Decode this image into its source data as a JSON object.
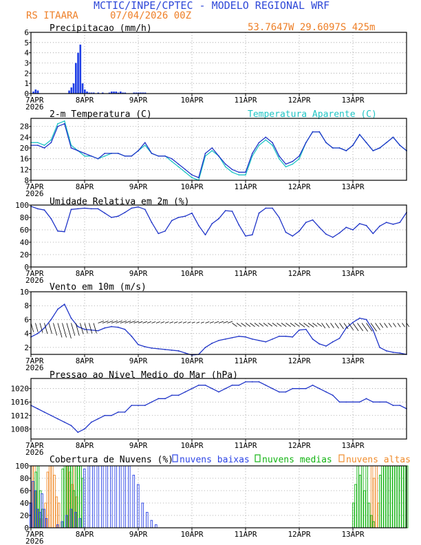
{
  "header": {
    "title": "MCTIC/INPE/CPTEC - MODELO REGIONAL WRF",
    "location": "RS ITAARA",
    "run": "07/04/2026 00Z",
    "coords": "53.7647W 29.6097S 425m"
  },
  "colors": {
    "header_blue": "#2f49d8",
    "header_orange": "#ee7f27",
    "precip": "#1e3ee6",
    "temp": "#1f34c8",
    "apparent": "#1fc4c4",
    "rh": "#1f34c8",
    "wind": "#1f34c8",
    "barb": "#000000",
    "pressure": "#1f34c8",
    "cloud_low": "#2c44e6",
    "cloud_mid": "#13b413",
    "cloud_high": "#f08c2c",
    "grid": "#9a9a9a"
  },
  "x_axis": {
    "ticks": [
      "7APR",
      "8APR",
      "9APR",
      "10APR",
      "11APR",
      "12APR",
      "13APR"
    ],
    "year": "2026"
  },
  "panels": {
    "precip": {
      "title": "Precipitacao (mm/h)",
      "ylim": [
        0,
        6
      ],
      "yticks": [
        "0",
        "1",
        "2",
        "3",
        "4",
        "5",
        "6"
      ]
    },
    "temperature": {
      "title": "2-m Temperatura (C)",
      "legend": "Temperatura Aparente (C)",
      "ylim": [
        8,
        31
      ],
      "yticks": [
        "8",
        "12",
        "16",
        "20",
        "24",
        "28"
      ]
    },
    "humidity": {
      "title": "Umidade Relativa em 2m (%)",
      "ylim": [
        0,
        100
      ],
      "yticks": [
        "0",
        "20",
        "40",
        "60",
        "80",
        "100"
      ]
    },
    "wind": {
      "title": "Vento em 10m (m/s)",
      "ylim": [
        1,
        10
      ],
      "yticks": [
        "2",
        "4",
        "6",
        "8",
        "10"
      ]
    },
    "pressure": {
      "title": "Pressao ao Nivel Medio do Mar (hPa)",
      "ylim": [
        1005,
        1023
      ],
      "yticks": [
        "1008",
        "1012",
        "1016",
        "1020"
      ]
    },
    "clouds": {
      "title": "Cobertura de Nuvens (%)",
      "legend_low": "nuvens baixas",
      "legend_mid": "nuvens medias",
      "legend_high": "nuvens altas",
      "ylim": [
        0,
        100
      ],
      "yticks": [
        "0",
        "20",
        "40",
        "60",
        "80",
        "100"
      ]
    }
  },
  "chart_data": [
    {
      "type": "bar",
      "title": "Precipitacao (mm/h)",
      "x_unit": "hours since 7APR 00Z",
      "ylim": [
        0,
        6
      ],
      "x": [
        1,
        2,
        3,
        17,
        18,
        19,
        20,
        21,
        22,
        23,
        24,
        25,
        26,
        27,
        28,
        30,
        32,
        35,
        36,
        37,
        38,
        39,
        40,
        41,
        42,
        46,
        47,
        48,
        49,
        50,
        51
      ],
      "values": [
        0.2,
        0.4,
        0.3,
        0.3,
        0.6,
        1.0,
        3.0,
        4.0,
        4.8,
        1.0,
        0.4,
        0.2,
        0.1,
        0.1,
        0.1,
        0.1,
        0.1,
        0.1,
        0.2,
        0.2,
        0.2,
        0.1,
        0.2,
        0.1,
        0.1,
        0.1,
        0.1,
        0.1,
        0.1,
        0.1,
        0.1
      ]
    },
    {
      "type": "line",
      "title": "2-m Temperatura (C)",
      "x_unit": "hours since 7APR 00Z",
      "ylim": [
        8,
        31
      ],
      "series": [
        {
          "name": "2-m Temperatura (C)",
          "x": [
            0,
            3,
            6,
            9,
            12,
            15,
            18,
            21,
            24,
            27,
            30,
            33,
            36,
            39,
            42,
            45,
            48,
            51,
            54,
            57,
            60,
            63,
            66,
            69,
            72,
            75,
            78,
            81,
            84,
            87,
            90,
            93,
            96,
            99,
            102,
            105,
            108,
            111,
            114,
            117,
            120,
            123,
            126,
            129,
            132,
            135,
            138,
            141,
            144,
            147,
            150,
            153,
            156,
            159,
            162,
            165,
            168
          ],
          "values": [
            21,
            21,
            20,
            22,
            28,
            29,
            20,
            19,
            18,
            17,
            16,
            18,
            18,
            18,
            17,
            17,
            19,
            22,
            18,
            17,
            17,
            16,
            14,
            12,
            10,
            9,
            18,
            20,
            17,
            14,
            12,
            11,
            11,
            18,
            22,
            24,
            22,
            17,
            14,
            15,
            17,
            22,
            26,
            26,
            22,
            20,
            20,
            19,
            21,
            25,
            22,
            19,
            20,
            22,
            24,
            21,
            19
          ]
        },
        {
          "name": "Temperatura Aparente (C)",
          "x": [
            0,
            3,
            6,
            9,
            12,
            15,
            18,
            21,
            24,
            27,
            30,
            33,
            36,
            39,
            42,
            45,
            48,
            51,
            54,
            57,
            60,
            63,
            66,
            69,
            72,
            75,
            78,
            81,
            84,
            87,
            90,
            93,
            96,
            99,
            102,
            105,
            108,
            111,
            114,
            117,
            120,
            123,
            126,
            129,
            132,
            135,
            138,
            141,
            144,
            147,
            150,
            153,
            156,
            159,
            162,
            165,
            168
          ],
          "values": [
            22,
            22,
            21,
            23,
            29,
            30,
            21,
            19,
            17,
            17,
            16,
            17,
            18,
            18,
            17,
            17,
            19,
            21,
            18,
            17,
            17,
            15,
            13,
            11,
            9,
            8,
            17,
            19,
            17,
            13,
            11,
            10,
            10,
            17,
            21,
            23,
            21,
            16,
            13,
            14,
            16,
            22,
            26,
            26,
            22,
            20,
            20,
            19,
            21,
            25,
            22,
            19,
            20,
            22,
            24,
            21,
            19
          ]
        }
      ]
    },
    {
      "type": "line",
      "title": "Umidade Relativa em 2m (%)",
      "x_unit": "hours since 7APR 00Z",
      "ylim": [
        0,
        100
      ],
      "series": [
        {
          "name": "Umidade Relativa em 2m (%)",
          "x": [
            0,
            3,
            6,
            9,
            12,
            15,
            18,
            21,
            24,
            27,
            30,
            33,
            36,
            39,
            42,
            45,
            48,
            51,
            54,
            57,
            60,
            63,
            66,
            69,
            72,
            75,
            78,
            81,
            84,
            87,
            90,
            93,
            96,
            99,
            102,
            105,
            108,
            111,
            114,
            117,
            120,
            123,
            126,
            129,
            132,
            135,
            138,
            141,
            144,
            147,
            150,
            153,
            156,
            159,
            162,
            165,
            168
          ],
          "values": [
            98,
            94,
            92,
            78,
            58,
            57,
            93,
            94,
            95,
            94,
            94,
            87,
            80,
            82,
            88,
            95,
            97,
            93,
            72,
            54,
            58,
            75,
            80,
            82,
            87,
            67,
            52,
            70,
            78,
            91,
            90,
            68,
            50,
            52,
            87,
            95,
            95,
            80,
            56,
            50,
            58,
            72,
            76,
            64,
            53,
            48,
            55,
            64,
            60,
            70,
            67,
            54,
            66,
            72,
            69,
            72,
            88
          ]
        }
      ]
    },
    {
      "type": "line",
      "title": "Vento em 10m (m/s)",
      "x_unit": "hours since 7APR 00Z",
      "ylim": [
        1,
        10
      ],
      "series": [
        {
          "name": "Vento em 10m (m/s)",
          "x": [
            0,
            3,
            6,
            9,
            12,
            15,
            18,
            21,
            24,
            27,
            30,
            33,
            36,
            39,
            42,
            45,
            48,
            51,
            54,
            57,
            60,
            63,
            66,
            69,
            72,
            75,
            78,
            81,
            84,
            87,
            90,
            93,
            96,
            99,
            102,
            105,
            108,
            111,
            114,
            117,
            120,
            123,
            126,
            129,
            132,
            135,
            138,
            141,
            144,
            147,
            150,
            153,
            156,
            159,
            162,
            165,
            168
          ],
          "values": [
            3.5,
            4.0,
            4.8,
            6.0,
            7.5,
            8.2,
            6.2,
            5.0,
            4.6,
            4.5,
            4.4,
            4.8,
            5.0,
            4.9,
            4.6,
            3.6,
            2.4,
            2.1,
            1.9,
            1.8,
            1.7,
            1.6,
            1.5,
            1.2,
            0.9,
            1.0,
            2.0,
            2.6,
            3.0,
            3.2,
            3.4,
            3.6,
            3.5,
            3.2,
            3.0,
            2.8,
            3.2,
            3.6,
            3.6,
            3.5,
            4.5,
            4.6,
            3.2,
            2.5,
            2.2,
            2.8,
            3.3,
            4.8,
            5.6,
            6.2,
            6.0,
            4.5,
            2.0,
            1.5,
            1.3,
            1.2,
            1.0
          ]
        }
      ]
    },
    {
      "type": "line",
      "title": "Pressao ao Nivel Medio do Mar (hPa)",
      "x_unit": "hours since 7APR 00Z",
      "ylim": [
        1005,
        1023
      ],
      "series": [
        {
          "name": "Pressao ao Nivel Medio do Mar (hPa)",
          "x": [
            0,
            3,
            6,
            9,
            12,
            15,
            18,
            21,
            24,
            27,
            30,
            33,
            36,
            39,
            42,
            45,
            48,
            51,
            54,
            57,
            60,
            63,
            66,
            69,
            72,
            75,
            78,
            81,
            84,
            87,
            90,
            93,
            96,
            99,
            102,
            105,
            108,
            111,
            114,
            117,
            120,
            123,
            126,
            129,
            132,
            135,
            138,
            141,
            144,
            147,
            150,
            153,
            156,
            159,
            162,
            165,
            168
          ],
          "values": [
            1015,
            1014,
            1013,
            1012,
            1011,
            1010,
            1009,
            1007,
            1008,
            1010,
            1011,
            1012,
            1012,
            1013,
            1013,
            1015,
            1015,
            1015,
            1016,
            1017,
            1017,
            1018,
            1018,
            1019,
            1020,
            1021,
            1021,
            1020,
            1019,
            1020,
            1021,
            1021,
            1022,
            1022,
            1022,
            1021,
            1020,
            1019,
            1019,
            1020,
            1020,
            1020,
            1021,
            1020,
            1019,
            1018,
            1016,
            1016,
            1016,
            1016,
            1017,
            1016,
            1016,
            1016,
            1015,
            1015,
            1014
          ]
        }
      ]
    },
    {
      "type": "bar",
      "title": "Cobertura de Nuvens (%)",
      "x_unit": "hours since 7APR 00Z",
      "ylim": [
        0,
        100
      ],
      "series": [
        {
          "name": "nuvens baixas",
          "x": [
            0,
            1,
            2,
            3,
            4,
            5,
            6,
            7,
            12,
            14,
            16,
            18,
            20,
            22,
            24,
            26,
            28,
            30,
            32,
            34,
            36,
            38,
            40,
            42,
            44,
            46,
            48,
            50,
            52,
            54,
            56
          ],
          "values": [
            40,
            75,
            60,
            30,
            25,
            55,
            30,
            15,
            5,
            10,
            20,
            30,
            25,
            15,
            95,
            100,
            100,
            100,
            100,
            100,
            100,
            100,
            100,
            100,
            100,
            85,
            70,
            40,
            25,
            12,
            5
          ]
        },
        {
          "name": "nuvens medias",
          "x": [
            2,
            3,
            4,
            5,
            14,
            15,
            16,
            17,
            18,
            19,
            20,
            21,
            22,
            23,
            144,
            145,
            146,
            147,
            148,
            149,
            150,
            151,
            152,
            153,
            156,
            157,
            158,
            159,
            160,
            161,
            162,
            163,
            164,
            165,
            166,
            167,
            168
          ],
          "values": [
            90,
            100,
            60,
            30,
            95,
            100,
            100,
            100,
            100,
            60,
            100,
            100,
            100,
            80,
            40,
            70,
            100,
            85,
            100,
            60,
            100,
            40,
            20,
            10,
            85,
            100,
            100,
            100,
            100,
            100,
            100,
            100,
            100,
            100,
            100,
            100,
            100
          ]
        },
        {
          "name": "nuvens altas",
          "x": [
            0,
            1,
            2,
            3,
            4,
            6,
            7,
            8,
            9,
            10,
            11,
            12,
            16,
            17,
            18,
            19,
            20,
            152,
            153,
            154,
            155
          ],
          "values": [
            100,
            100,
            60,
            30,
            15,
            40,
            90,
            100,
            100,
            85,
            50,
            40,
            100,
            90,
            70,
            100,
            50,
            100,
            80,
            100,
            40
          ]
        }
      ]
    }
  ]
}
